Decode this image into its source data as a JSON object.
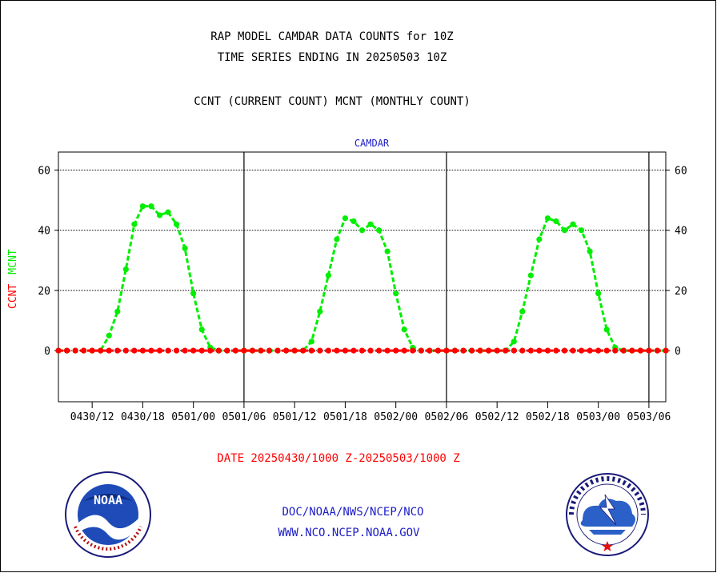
{
  "header": {
    "title": "RAP MODEL CAMDAR DATA COUNTS for 10Z",
    "subtitle": "TIME SERIES ENDING IN 20250503 10Z",
    "legend_text": "CCNT (CURRENT COUNT) MCNT (MONTHLY COUNT)"
  },
  "footer": {
    "date_range": "DATE 20250430/1000 Z-20250503/1000 Z",
    "org_path": "DOC/NOAA/NWS/NCEP/NCO",
    "website": "WWW.NCO.NCEP.NOAA.GOV"
  },
  "logos": {
    "left": "NOAA",
    "right": "NATIONAL WEATHER SERVICE"
  },
  "chart_data": {
    "type": "line",
    "title": "CAMDAR",
    "ylabel_parts": [
      "CCNT",
      "MCNT"
    ],
    "ylim": [
      -17,
      66
    ],
    "yticks": [
      0,
      20,
      40,
      60
    ],
    "xlim": [
      10,
      82
    ],
    "xticks": [
      14,
      20,
      26,
      32,
      38,
      44,
      50,
      56,
      62,
      68,
      74,
      80
    ],
    "xticklabels": [
      "0430/12",
      "0430/18",
      "0501/00",
      "0501/06",
      "0501/12",
      "0501/18",
      "0502/00",
      "0502/06",
      "0502/12",
      "0502/18",
      "0503/00",
      "0503/06"
    ],
    "day_boundaries": [
      32,
      56,
      80
    ],
    "grid": true,
    "colors": {
      "CCNT": "#ff0000",
      "MCNT": "#00ee00"
    },
    "series": [
      {
        "name": "CCNT",
        "x": [
          10,
          11,
          12,
          13,
          14,
          15,
          16,
          17,
          18,
          19,
          20,
          21,
          22,
          23,
          24,
          25,
          26,
          27,
          28,
          29,
          30,
          31,
          32,
          33,
          34,
          35,
          36,
          37,
          38,
          39,
          40,
          41,
          42,
          43,
          44,
          45,
          46,
          47,
          48,
          49,
          50,
          51,
          52,
          53,
          54,
          55,
          56,
          57,
          58,
          59,
          60,
          61,
          62,
          63,
          64,
          65,
          66,
          67,
          68,
          69,
          70,
          71,
          72,
          73,
          74,
          75,
          76,
          77,
          78,
          79,
          80,
          81,
          82
        ],
        "values": [
          0,
          0,
          0,
          0,
          0,
          0,
          0,
          0,
          0,
          0,
          0,
          0,
          0,
          0,
          0,
          0,
          0,
          0,
          0,
          0,
          0,
          0,
          0,
          0,
          0,
          0,
          0,
          0,
          0,
          0,
          0,
          0,
          0,
          0,
          0,
          0,
          0,
          0,
          0,
          0,
          0,
          0,
          0,
          0,
          0,
          0,
          0,
          0,
          0,
          0,
          0,
          0,
          0,
          0,
          0,
          0,
          0,
          0,
          0,
          0,
          0,
          0,
          0,
          0,
          0,
          0,
          0,
          0,
          0,
          0,
          0,
          0,
          0
        ]
      },
      {
        "name": "MCNT",
        "x": [
          10,
          11,
          12,
          13,
          14,
          15,
          16,
          17,
          18,
          19,
          20,
          21,
          22,
          23,
          24,
          25,
          26,
          27,
          28,
          29,
          30,
          31,
          32,
          33,
          34,
          35,
          36,
          37,
          38,
          39,
          40,
          41,
          42,
          43,
          44,
          45,
          46,
          47,
          48,
          49,
          50,
          51,
          52,
          53,
          54,
          55,
          56,
          57,
          58,
          59,
          60,
          61,
          62,
          63,
          64,
          65,
          66,
          67,
          68,
          69,
          70,
          71,
          72,
          73,
          74,
          75,
          76,
          77,
          78,
          79,
          80,
          81,
          82
        ],
        "values": [
          0,
          0,
          0,
          0,
          0,
          0,
          5,
          13,
          27,
          42,
          48,
          48,
          45,
          46,
          42,
          34,
          19,
          7,
          1,
          0,
          0,
          0,
          0,
          0,
          0,
          0,
          0,
          0,
          0,
          0,
          3,
          13,
          25,
          37,
          44,
          43,
          40,
          42,
          40,
          33,
          19,
          7,
          1,
          0,
          0,
          0,
          0,
          0,
          0,
          0,
          0,
          0,
          0,
          0,
          3,
          13,
          25,
          37,
          44,
          43,
          40,
          42,
          40,
          33,
          19,
          7,
          1,
          0,
          0,
          0,
          0,
          0,
          0
        ]
      }
    ]
  }
}
